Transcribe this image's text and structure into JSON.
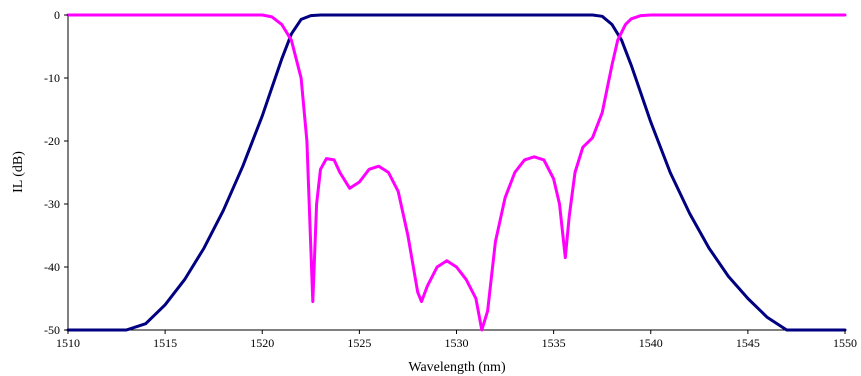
{
  "chart_data": {
    "type": "line",
    "title": "",
    "xlabel": "Wavelength (nm)",
    "ylabel": "IL (dB)",
    "xlim": [
      1510,
      1550
    ],
    "ylim": [
      -50,
      0
    ],
    "x_ticks": [
      1510,
      1515,
      1520,
      1525,
      1530,
      1535,
      1540,
      1545,
      1550
    ],
    "x_tick_labels": [
      "1510",
      "1515",
      "1520",
      "1525",
      "1530",
      "1535",
      "1540",
      "1545",
      "1550"
    ],
    "y_ticks": [
      0,
      -10,
      -20,
      -30,
      -40,
      -50
    ],
    "y_tick_labels": [
      "0",
      "-10",
      "-20",
      "-30",
      "-40",
      "-50"
    ],
    "grid": false,
    "legend": "none",
    "series": [
      {
        "color": "#000080",
        "x": [
          1510,
          1511,
          1512,
          1513,
          1514,
          1515,
          1516,
          1517,
          1518,
          1519,
          1520,
          1520.5,
          1521,
          1521.5,
          1522,
          1522.5,
          1523,
          1530,
          1537,
          1537.5,
          1538,
          1538.5,
          1539,
          1540,
          1541,
          1542,
          1543,
          1544,
          1545,
          1546,
          1547,
          1548,
          1549,
          1550
        ],
        "values": [
          -50,
          -50,
          -50,
          -50,
          -49,
          -46,
          -42,
          -37,
          -31,
          -24,
          -16,
          -11.5,
          -7,
          -3,
          -0.7,
          -0.1,
          0,
          0,
          0,
          -0.2,
          -1.5,
          -4,
          -8,
          -17,
          -25,
          -31.5,
          -37,
          -41.5,
          -45,
          -48,
          -50,
          -50,
          -50,
          -50
        ]
      },
      {
        "color": "#ff00ff",
        "x": [
          1510,
          1520,
          1520.5,
          1521,
          1521.5,
          1522,
          1522.3,
          1522.6,
          1522.8,
          1523,
          1523.3,
          1523.7,
          1524,
          1524.5,
          1525,
          1525.5,
          1526,
          1526.5,
          1527,
          1527.5,
          1528,
          1528.2,
          1528.5,
          1529,
          1529.5,
          1530,
          1530.5,
          1531,
          1531.3,
          1531.6,
          1532,
          1532.5,
          1533,
          1533.5,
          1534,
          1534.5,
          1535,
          1535.3,
          1535.6,
          1535.8,
          1536.1,
          1536.5,
          1537,
          1537.5,
          1538,
          1538.3,
          1538.7,
          1539,
          1539.5,
          1540,
          1541,
          1550
        ],
        "values": [
          0,
          0,
          -0.3,
          -1.5,
          -4,
          -10,
          -20,
          -45.5,
          -30,
          -24.5,
          -22.8,
          -23,
          -25,
          -27.5,
          -26.5,
          -24.5,
          -24,
          -25,
          -28,
          -35,
          -44,
          -45.5,
          -43,
          -40,
          -39,
          -40,
          -42,
          -45,
          -50,
          -47,
          -36,
          -29,
          -25,
          -23,
          -22.5,
          -23,
          -26,
          -30,
          -38.5,
          -32,
          -25,
          -21,
          -19.5,
          -15.5,
          -8,
          -4,
          -1.5,
          -0.6,
          -0.1,
          0,
          0,
          0
        ]
      }
    ]
  }
}
